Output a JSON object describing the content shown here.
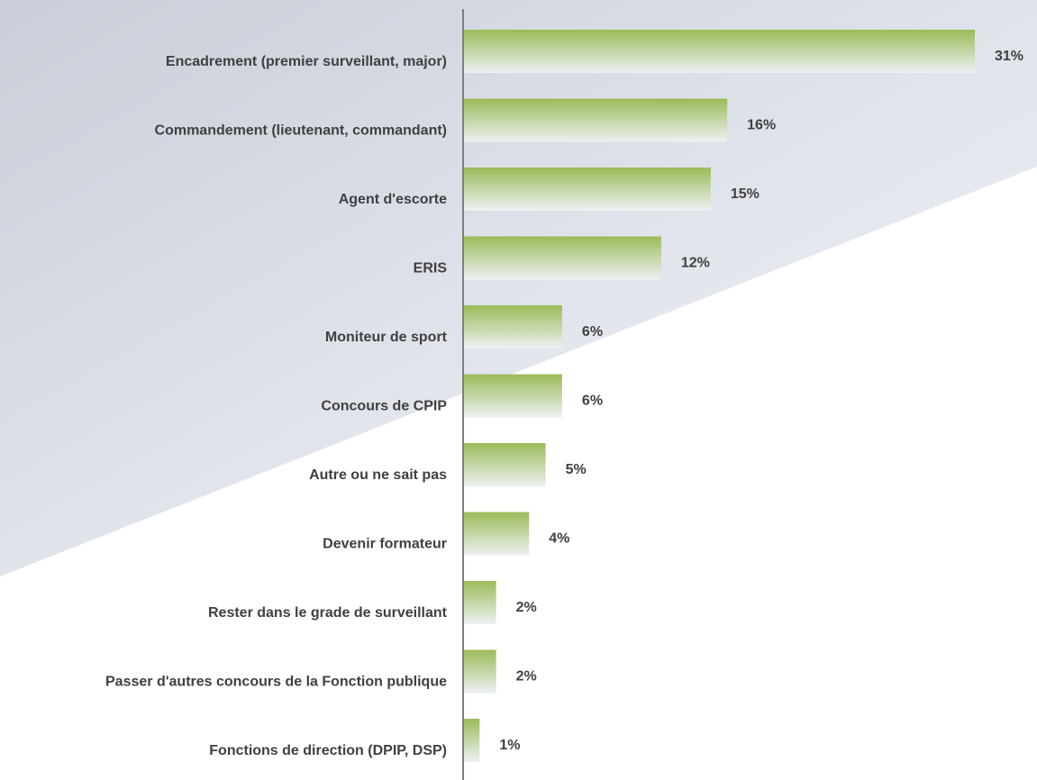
{
  "chart_data": {
    "type": "bar",
    "orientation": "horizontal",
    "categories": [
      "Encadrement  (premier surveillant, major)",
      "Commandement  (lieutenant, commandant)",
      "Agent d'escorte",
      "ERIS",
      "Moniteur de sport",
      "Concours de CPIP",
      "Autre ou ne sait pas",
      "Devenir formateur",
      "Rester dans le grade  de surveillant",
      "Passer d'autres concours de la  Fonction publique",
      "Fonctions de  direction (DPIP, DSP)"
    ],
    "values": [
      31,
      16,
      15,
      12,
      6,
      6,
      5,
      4,
      2,
      2,
      1
    ],
    "value_labels": [
      "31%",
      "16%",
      "15%",
      "12%",
      "6%",
      "6%",
      "5%",
      "4%",
      "2%",
      "2%",
      "1%"
    ],
    "color": "#9bbb59"
  }
}
